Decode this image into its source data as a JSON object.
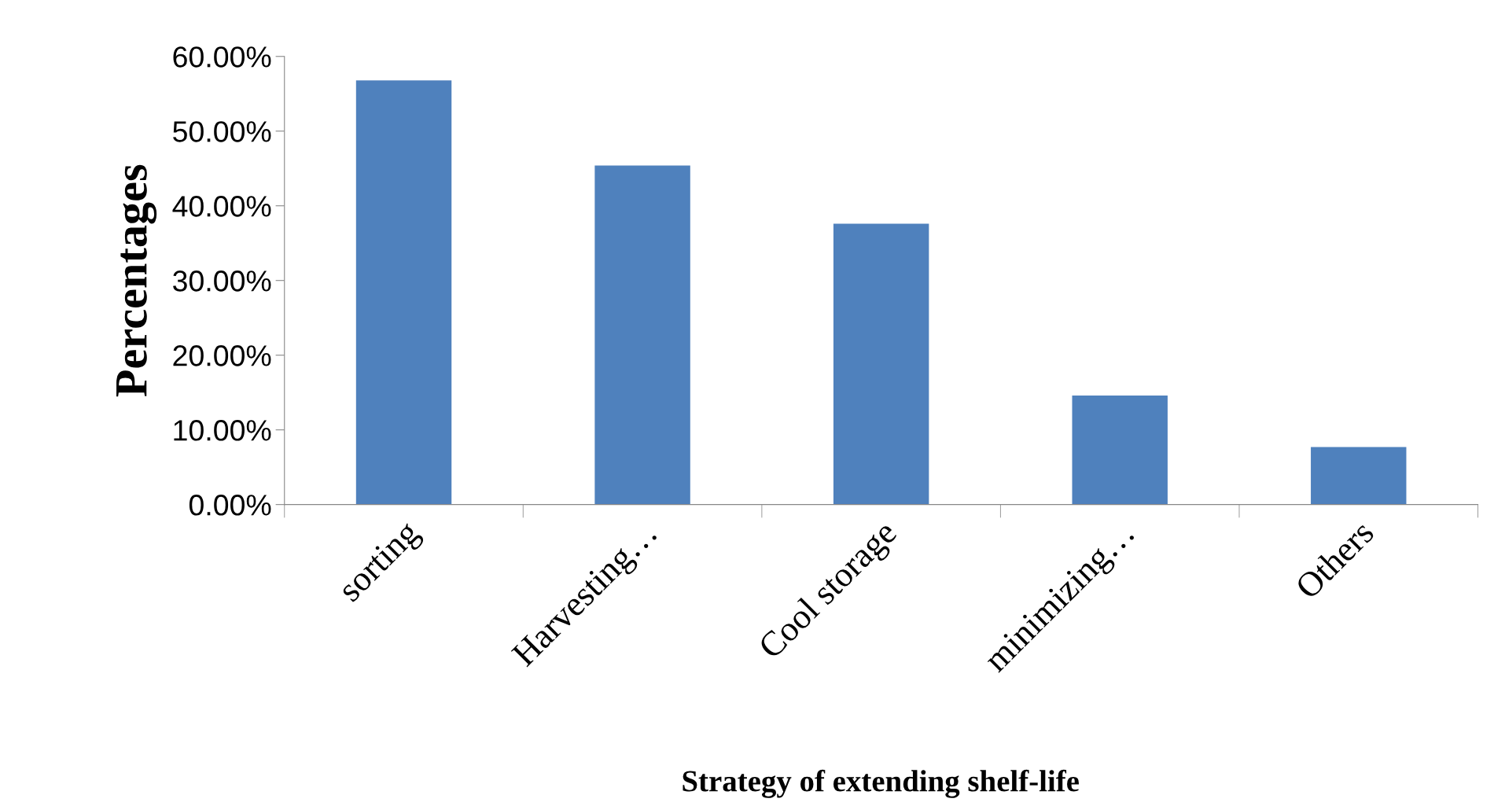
{
  "chart_data": {
    "type": "bar",
    "xlabel": "Strategy of extending shelf-life",
    "ylabel": "Percentages",
    "categories": [
      "sorting",
      "Harvesting…",
      "Cool storage",
      "minimizing…",
      "Others"
    ],
    "values": [
      56.8,
      45.4,
      37.6,
      14.6,
      7.7
    ],
    "color": "#4f81bd",
    "ylim": [
      0,
      60
    ],
    "yticks": [
      {
        "value": 0,
        "label": "0.00%"
      },
      {
        "value": 10,
        "label": "10.00%"
      },
      {
        "value": 20,
        "label": "20.00%"
      },
      {
        "value": 30,
        "label": "30.00%"
      },
      {
        "value": 40,
        "label": "40.00%"
      },
      {
        "value": 50,
        "label": "50.00%"
      },
      {
        "value": 60,
        "label": "60.00%"
      }
    ],
    "grid": false,
    "legend": false
  }
}
